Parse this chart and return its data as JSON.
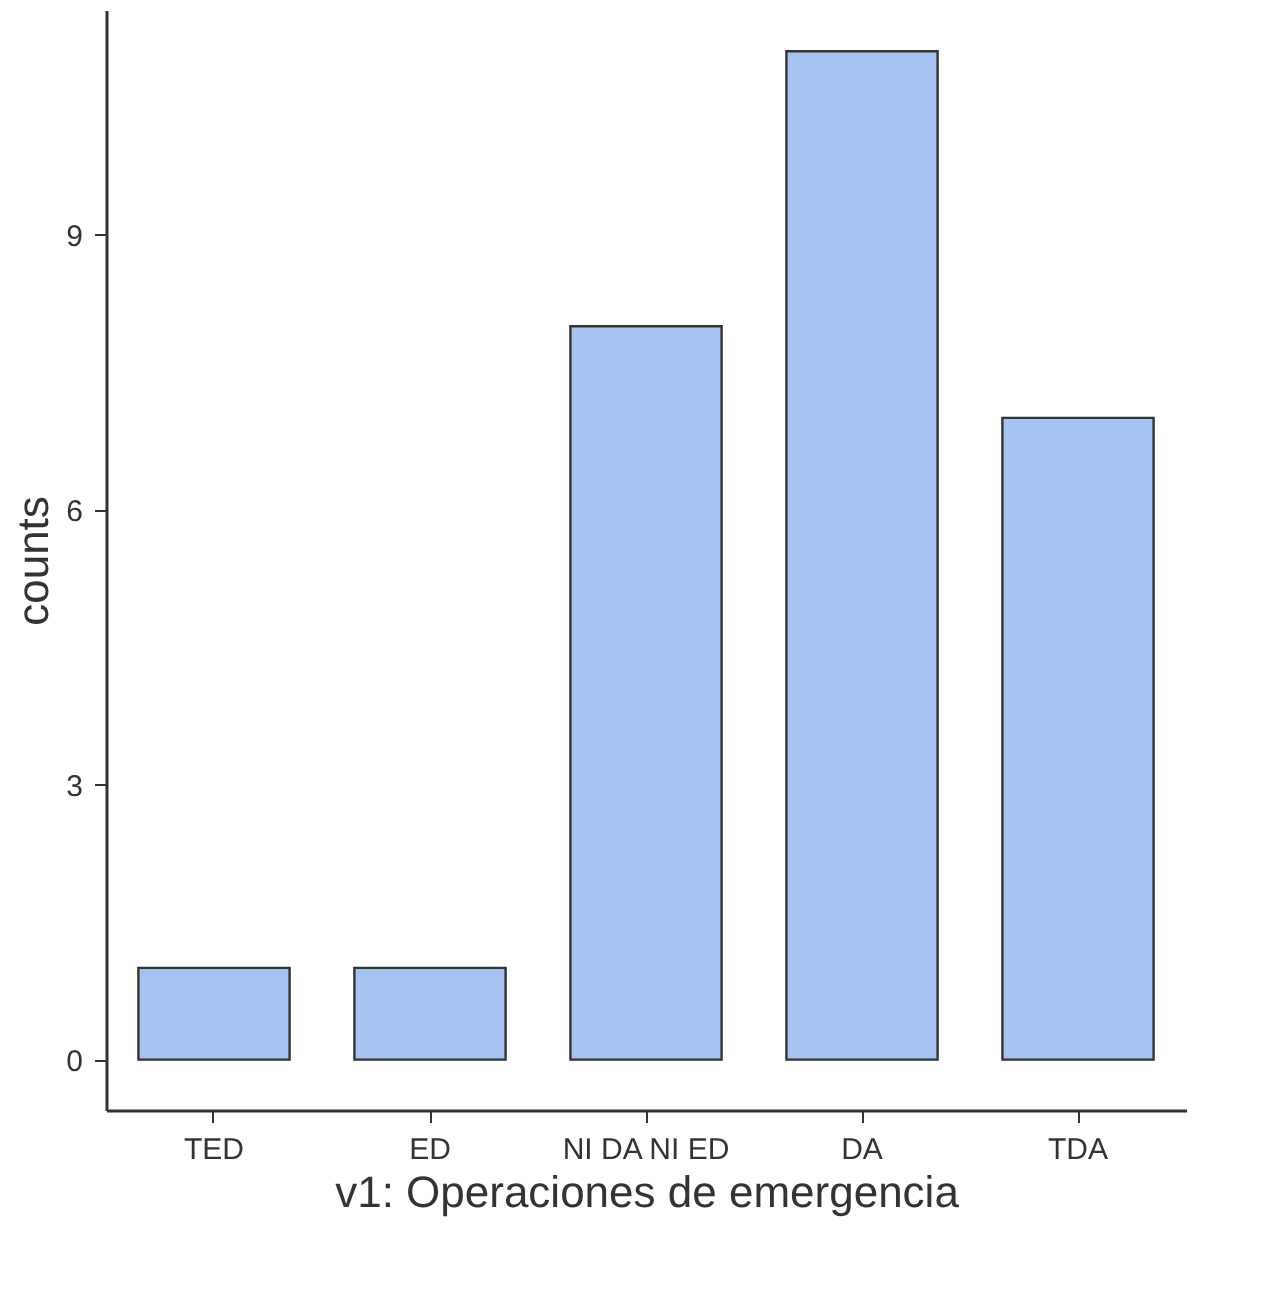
{
  "chart_data": {
    "type": "bar",
    "xlabel": "v1: Operaciones de emergencia",
    "ylabel": "counts",
    "categories": [
      "TED",
      "ED",
      "NI DA NI ED",
      "DA",
      "TDA"
    ],
    "values": [
      1,
      1,
      8,
      11,
      7
    ],
    "color": "#a4c3f0",
    "ylim": [
      -0.55,
      11.45
    ],
    "yticks": [
      0,
      3,
      6,
      9
    ],
    "grid": false
  }
}
